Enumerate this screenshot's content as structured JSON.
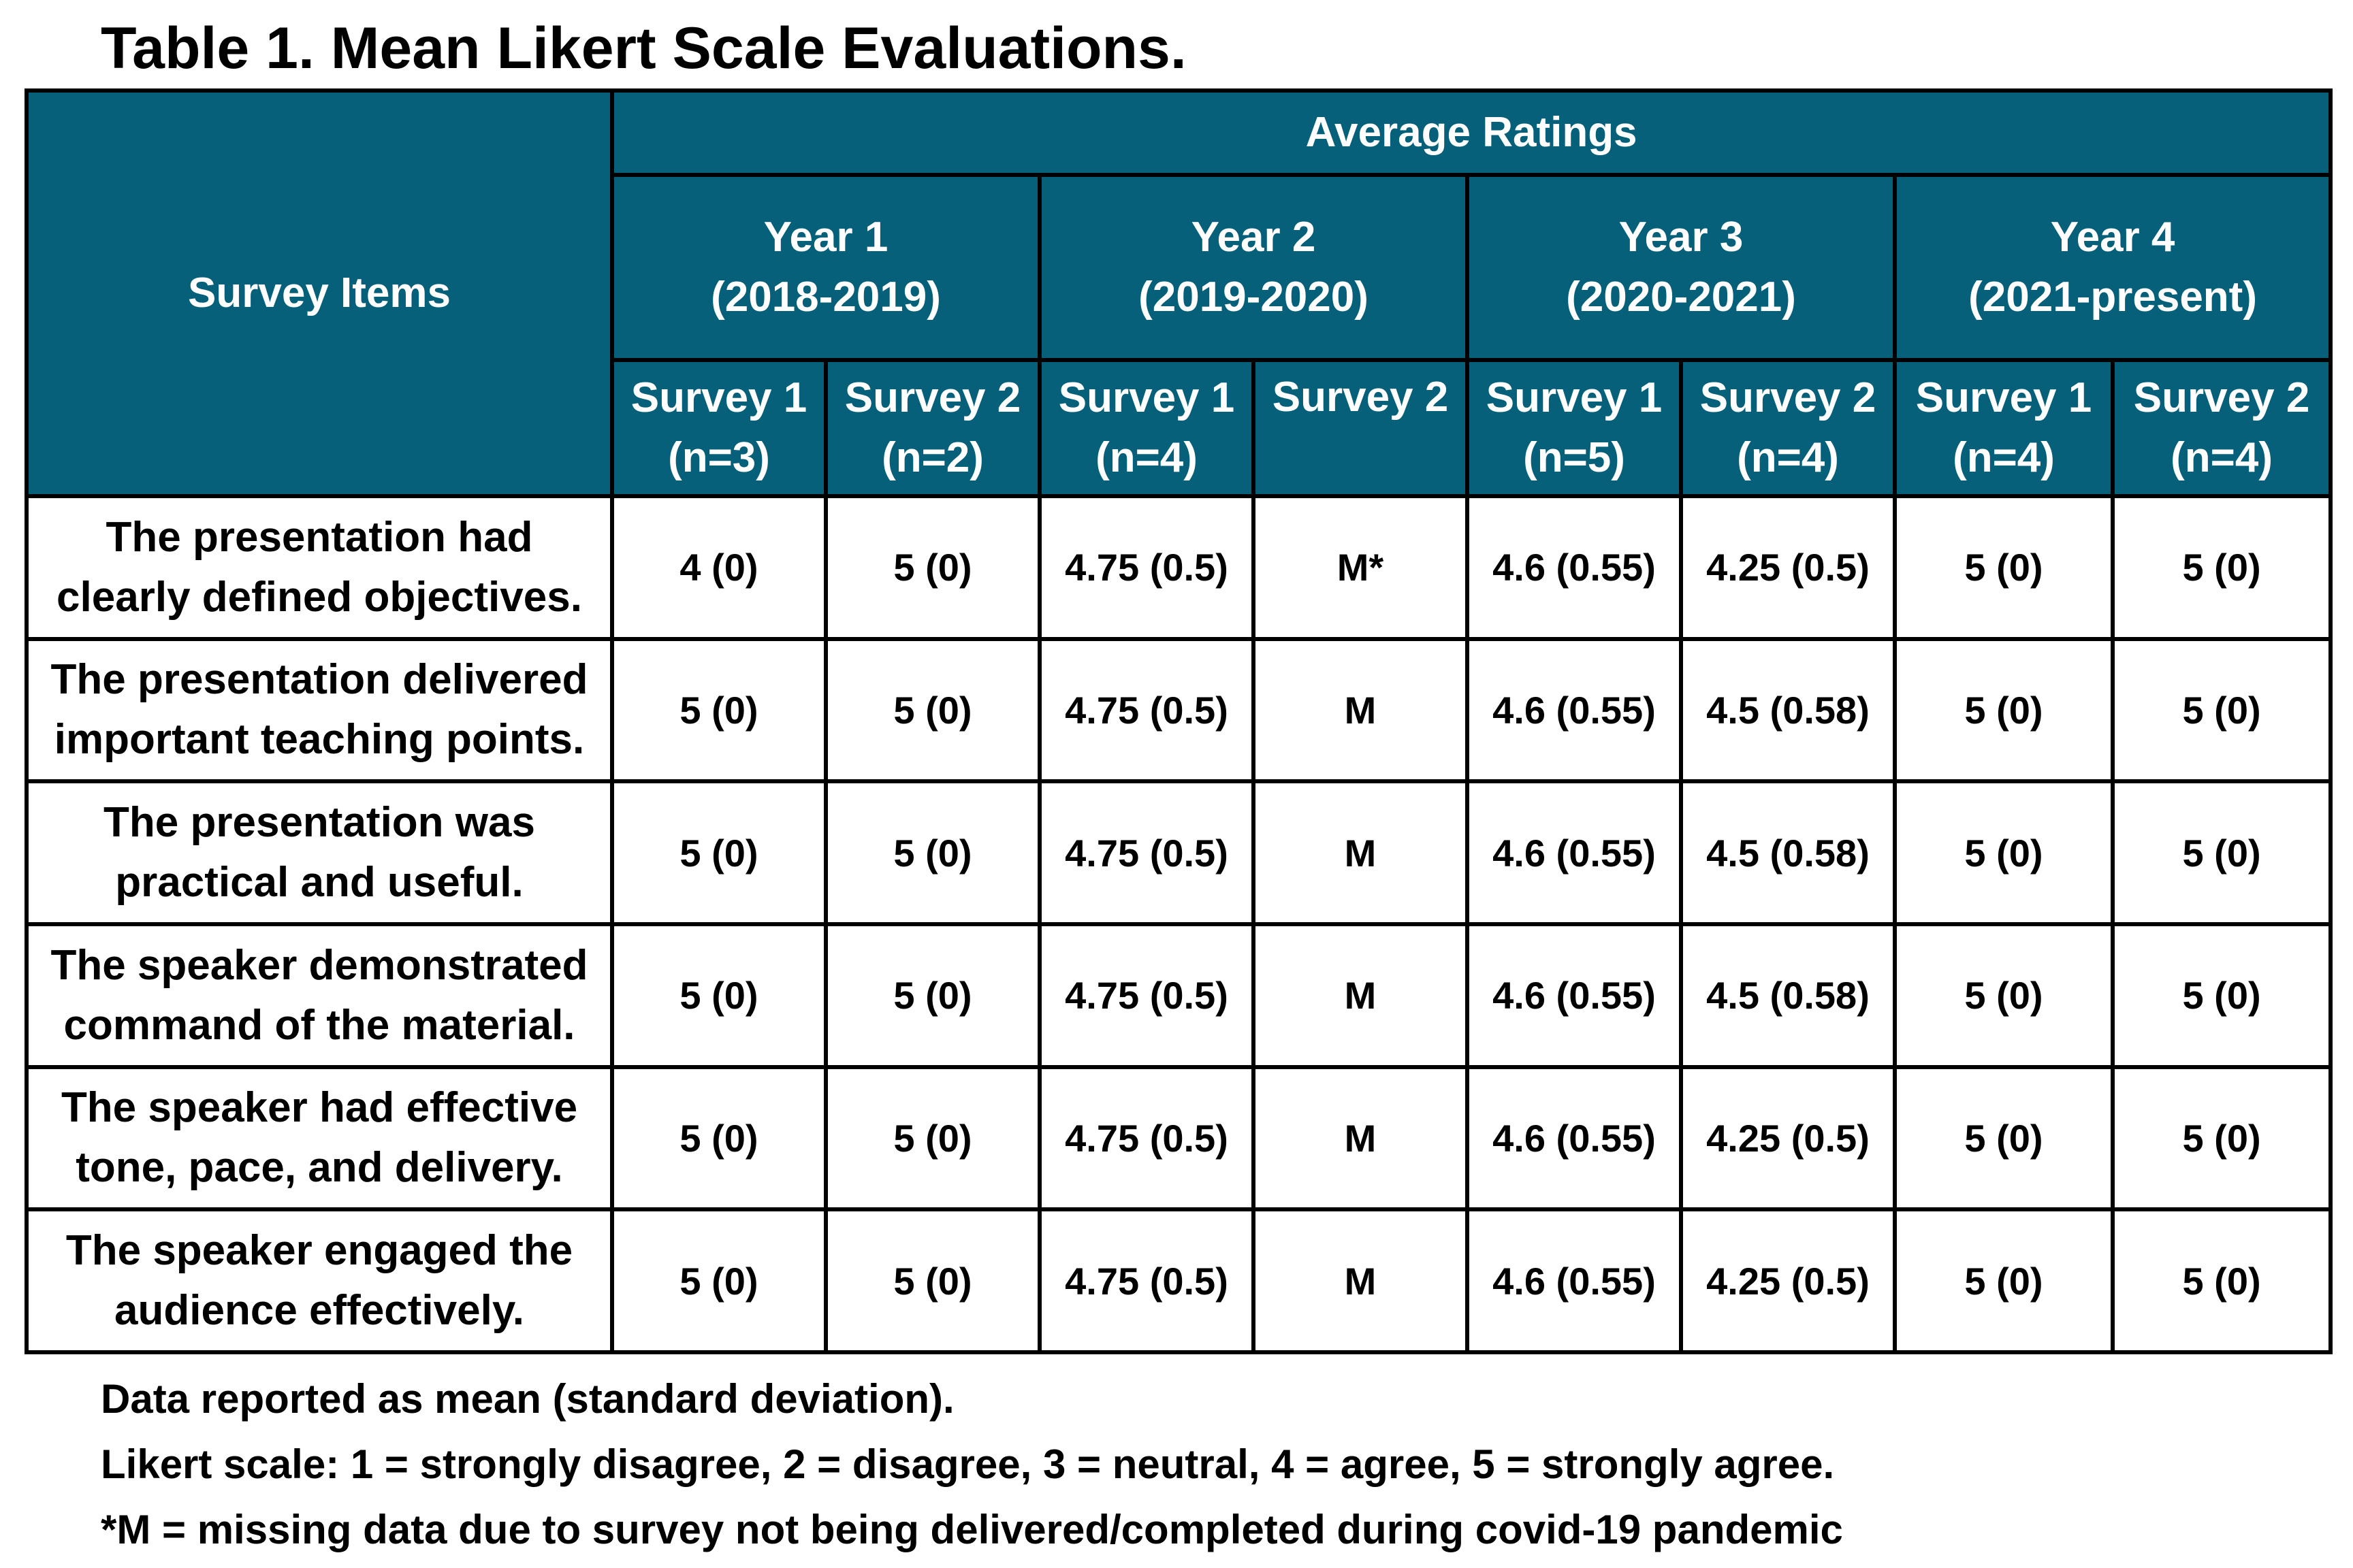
{
  "title": "Table 1. Mean Likert Scale Evaluations.",
  "header": {
    "survey_items": "Survey Items",
    "average_ratings": "Average Ratings",
    "years": [
      {
        "line1": "Year 1",
        "line2": "(2018-2019)"
      },
      {
        "line1": "Year 2",
        "line2": "(2019-2020)"
      },
      {
        "line1": "Year 3",
        "line2": "(2020-2021)"
      },
      {
        "line1": "Year 4",
        "line2": "(2021-present)"
      }
    ],
    "surveys": [
      {
        "line1": "Survey 1",
        "line2": "(n=3)"
      },
      {
        "line1": "Survey 2",
        "line2": "(n=2)"
      },
      {
        "line1": "Survey 1",
        "line2": "(n=4)"
      },
      {
        "line1": "Survey 2",
        "line2": ""
      },
      {
        "line1": "Survey 1",
        "line2": "(n=5)"
      },
      {
        "line1": "Survey 2",
        "line2": "(n=4)"
      },
      {
        "line1": "Survey 1",
        "line2": "(n=4)"
      },
      {
        "line1": "Survey 2",
        "line2": "(n=4)"
      }
    ]
  },
  "rows": [
    {
      "item1": "The presentation had",
      "item2": "clearly defined objectives.",
      "values": [
        "4 (0)",
        "5 (0)",
        "4.75 (0.5)",
        "M*",
        "4.6 (0.55)",
        "4.25 (0.5)",
        "5 (0)",
        "5 (0)"
      ]
    },
    {
      "item1": "The presentation delivered",
      "item2": "important teaching points.",
      "values": [
        "5 (0)",
        "5 (0)",
        "4.75 (0.5)",
        "M",
        "4.6 (0.55)",
        "4.5 (0.58)",
        "5 (0)",
        "5 (0)"
      ]
    },
    {
      "item1": "The presentation was",
      "item2": "practical and useful.",
      "values": [
        "5 (0)",
        "5 (0)",
        "4.75 (0.5)",
        "M",
        "4.6 (0.55)",
        "4.5 (0.58)",
        "5 (0)",
        "5 (0)"
      ]
    },
    {
      "item1": "The speaker demonstrated",
      "item2": "command of the material.",
      "values": [
        "5 (0)",
        "5 (0)",
        "4.75 (0.5)",
        "M",
        "4.6 (0.55)",
        "4.5 (0.58)",
        "5 (0)",
        "5 (0)"
      ]
    },
    {
      "item1": "The speaker had effective",
      "item2": "tone, pace, and delivery.",
      "values": [
        "5 (0)",
        "5 (0)",
        "4.75 (0.5)",
        "M",
        "4.6 (0.55)",
        "4.25 (0.5)",
        "5 (0)",
        "5 (0)"
      ]
    },
    {
      "item1": "The speaker engaged the",
      "item2": "audience effectively.",
      "values": [
        "5 (0)",
        "5 (0)",
        "4.75 (0.5)",
        "M",
        "4.6 (0.55)",
        "4.25 (0.5)",
        "5 (0)",
        "5 (0)"
      ]
    }
  ],
  "notes": [
    "Data reported as mean (standard deviation).",
    "Likert scale: 1 = strongly disagree, 2 = disagree, 3 = neutral, 4 = agree, 5 = strongly agree.",
    "*M = missing data due to survey not being delivered/completed during covid-19 pandemic"
  ],
  "colors": {
    "header_background": "#07607a",
    "header_text": "#ffffff",
    "border": "#000000"
  }
}
